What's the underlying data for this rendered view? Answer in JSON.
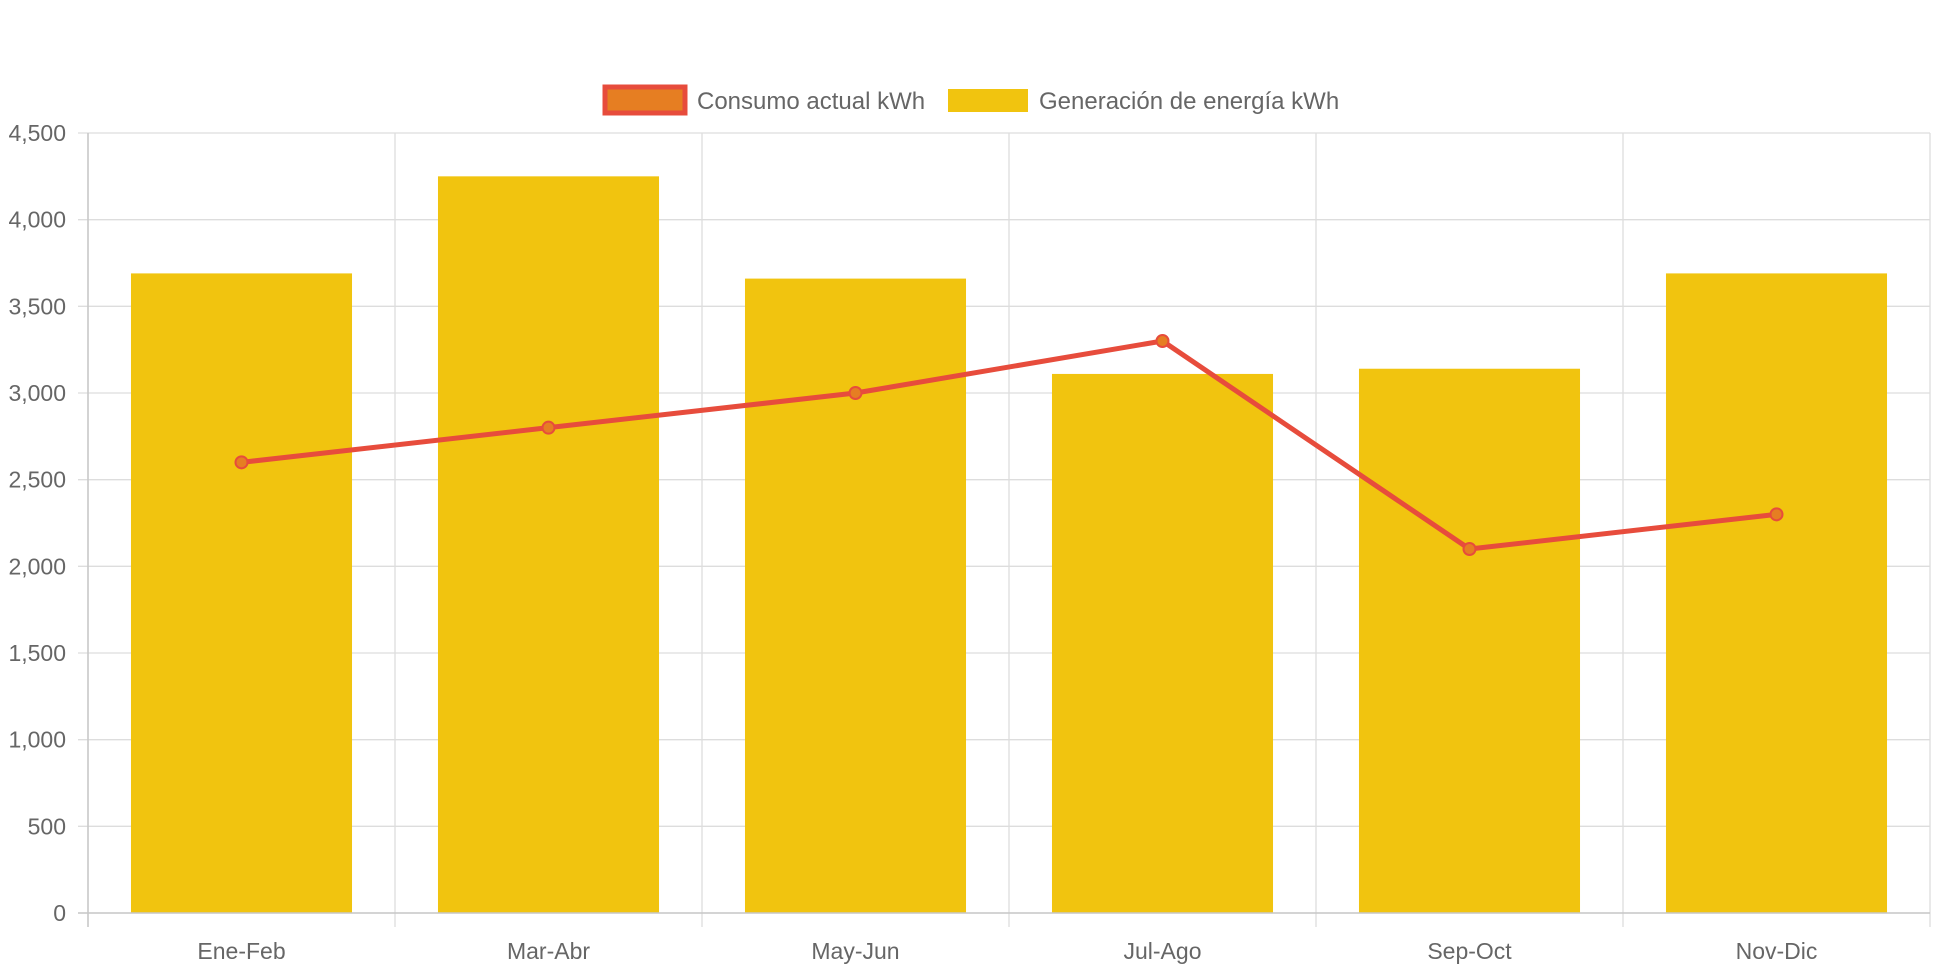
{
  "chart_data": {
    "type": "bar",
    "categories": [
      "Ene-Feb",
      "Mar-Abr",
      "May-Jun",
      "Jul-Ago",
      "Sep-Oct",
      "Nov-Dic"
    ],
    "ylim": [
      0,
      4500
    ],
    "y_ticks": [
      0,
      500,
      1000,
      1500,
      2000,
      2500,
      3000,
      3500,
      4000,
      4500
    ],
    "y_tick_labels": [
      "0",
      "500",
      "1,000",
      "1,500",
      "2,000",
      "2,500",
      "3,000",
      "3,500",
      "4,000",
      "4,500"
    ],
    "grid": true,
    "legend_position": "top-center",
    "series": [
      {
        "name": "Consumo actual kWh",
        "type": "line",
        "values": [
          2600,
          2800,
          3000,
          3300,
          2100,
          2300
        ],
        "color": "#e74c3c",
        "point_fill": "#e67e22"
      },
      {
        "name": "Generación de energía kWh",
        "type": "bar",
        "values": [
          3690,
          4250,
          3660,
          3110,
          3140,
          3690
        ],
        "color": "#f1c40f"
      }
    ],
    "title": "",
    "xlabel": "",
    "ylabel": ""
  }
}
